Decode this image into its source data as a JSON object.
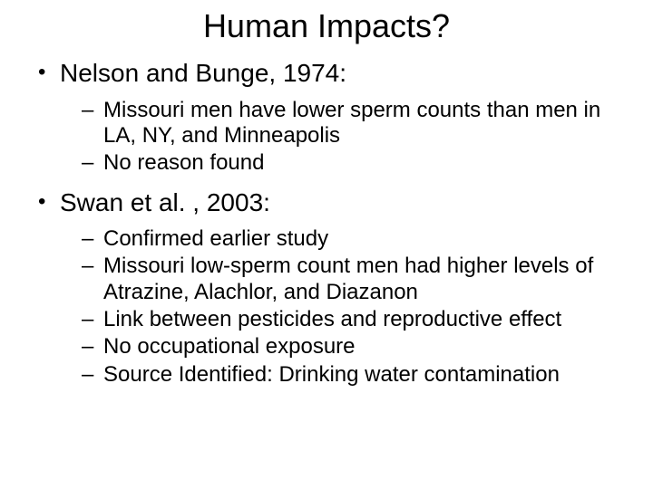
{
  "title": "Human Impacts?",
  "bullets": [
    {
      "text": "Nelson and Bunge, 1974:",
      "sub": [
        "Missouri men have lower sperm counts than men in LA, NY, and Minneapolis",
        "No reason found"
      ]
    },
    {
      "text": "Swan et al. , 2003:",
      "sub": [
        "Confirmed earlier study",
        "Missouri low-sperm count men had higher levels of Atrazine, Alachlor, and Diazanon",
        "Link between pesticides and reproductive effect",
        "No occupational exposure",
        "Source Identified:  Drinking water contamination"
      ]
    }
  ],
  "colors": {
    "background": "#ffffff",
    "text": "#000000"
  },
  "fonts": {
    "title_size": 36,
    "level1_size": 28,
    "level2_size": 24,
    "family": "Arial"
  }
}
